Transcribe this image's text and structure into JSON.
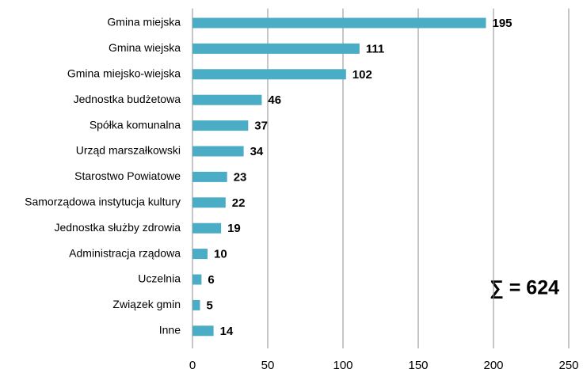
{
  "chart_data": {
    "type": "barh",
    "categories": [
      "Gmina miejska",
      "Gmina wiejska",
      "Gmina miejsko-wiejska",
      "Jednostka budżetowa",
      "Spółka komunalna",
      "Urząd marszałkowski",
      "Starostwo Powiatowe",
      "Samorządowa instytucja kultury",
      "Jednostka służby zdrowia",
      "Administracja rządowa",
      "Uczelnia",
      "Związek gmin",
      "Inne"
    ],
    "values": [
      195,
      111,
      102,
      46,
      37,
      34,
      23,
      22,
      19,
      10,
      6,
      5,
      14
    ],
    "color": "#4bacc6",
    "xlim": [
      0,
      250
    ],
    "xticks": [
      0,
      50,
      100,
      150,
      200,
      250
    ],
    "grid": true,
    "annotation": "∑ = 624"
  }
}
